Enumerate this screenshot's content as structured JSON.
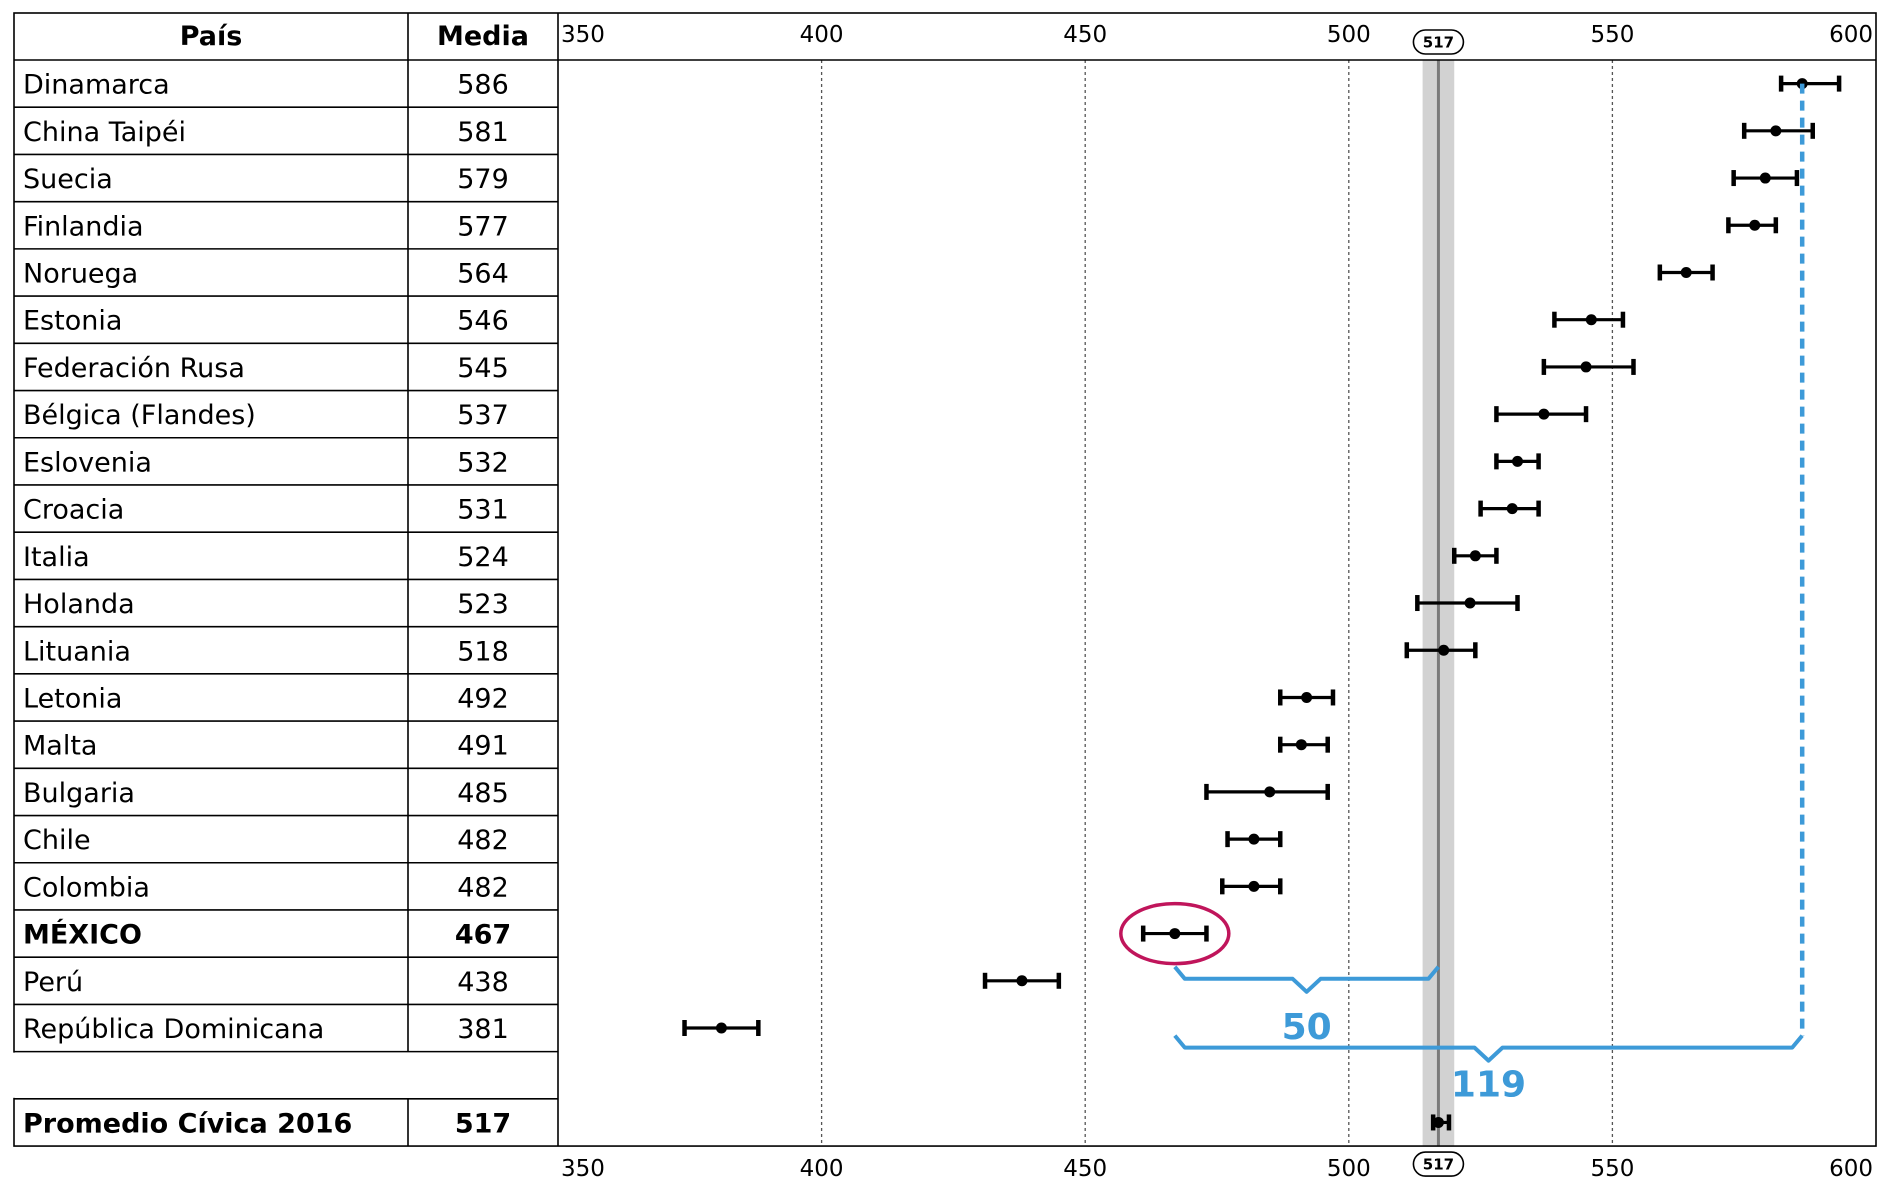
{
  "chart_data": {
    "type": "dot-interval",
    "columns": {
      "country": "País",
      "mean": "Media"
    },
    "x_ticks": [
      350,
      400,
      450,
      500,
      550,
      600
    ],
    "xlim": [
      350,
      600
    ],
    "grid": "vertical dotted",
    "rows": [
      {
        "country": "Dinamarca",
        "mean_label": "586",
        "value": 586,
        "ci": [
          582,
          593
        ]
      },
      {
        "country": "China Taipéi",
        "mean_label": "581",
        "value": 581,
        "ci": [
          575,
          588
        ]
      },
      {
        "country": "Suecia",
        "mean_label": "579",
        "value": 579,
        "ci": [
          573,
          585
        ]
      },
      {
        "country": "Finlandia",
        "mean_label": "577",
        "value": 577,
        "ci": [
          572,
          581
        ]
      },
      {
        "country": "Noruega",
        "mean_label": "564",
        "value": 564,
        "ci": [
          559,
          569
        ]
      },
      {
        "country": "Estonia",
        "mean_label": "546",
        "value": 546,
        "ci": [
          539,
          552
        ]
      },
      {
        "country": "Federación Rusa",
        "mean_label": "545",
        "value": 545,
        "ci": [
          537,
          554
        ]
      },
      {
        "country": "Bélgica (Flandes)",
        "mean_label": "537",
        "value": 537,
        "ci": [
          528,
          545
        ]
      },
      {
        "country": "Eslovenia",
        "mean_label": "532",
        "value": 532,
        "ci": [
          528,
          536
        ]
      },
      {
        "country": "Croacia",
        "mean_label": "531",
        "value": 531,
        "ci": [
          525,
          536
        ]
      },
      {
        "country": "Italia",
        "mean_label": "524",
        "value": 524,
        "ci": [
          520,
          528
        ]
      },
      {
        "country": "Holanda",
        "mean_label": "523",
        "value": 523,
        "ci": [
          513,
          532
        ]
      },
      {
        "country": "Lituania",
        "mean_label": "518",
        "value": 518,
        "ci": [
          511,
          524
        ]
      },
      {
        "country": "Letonia",
        "mean_label": "492",
        "value": 492,
        "ci": [
          487,
          497
        ]
      },
      {
        "country": "Malta",
        "mean_label": "491",
        "value": 491,
        "ci": [
          487,
          496
        ]
      },
      {
        "country": "Bulgaria",
        "mean_label": "485",
        "value": 485,
        "ci": [
          473,
          496
        ]
      },
      {
        "country": "Chile",
        "mean_label": "482",
        "value": 482,
        "ci": [
          477,
          487
        ]
      },
      {
        "country": "Colombia",
        "mean_label": "482",
        "value": 482,
        "ci": [
          476,
          487
        ]
      },
      {
        "country": "MÉXICO",
        "mean_label": "467",
        "value": 467,
        "ci": [
          461,
          473
        ],
        "bold": true,
        "highlight": true
      },
      {
        "country": "Perú",
        "mean_label": "438",
        "value": 438,
        "ci": [
          431,
          445
        ]
      },
      {
        "country": "República Dominicana",
        "mean_label": "381",
        "value": 381,
        "ci": [
          374,
          388
        ]
      }
    ],
    "average": {
      "label": "Promedio Cívica 2016",
      "mean_label": "517",
      "value": 517,
      "ci": [
        516,
        519
      ],
      "band": [
        514,
        520
      ],
      "marker_label": "517"
    },
    "annotations": [
      {
        "label": "50",
        "from": 467,
        "to": 517
      },
      {
        "label": "119",
        "from": 467,
        "to": 586
      }
    ],
    "colors": {
      "annotation": "#3d9ad8",
      "highlight": "#c0155b",
      "band": "#d2d2d2",
      "average_line": "#7a7a7a"
    }
  }
}
